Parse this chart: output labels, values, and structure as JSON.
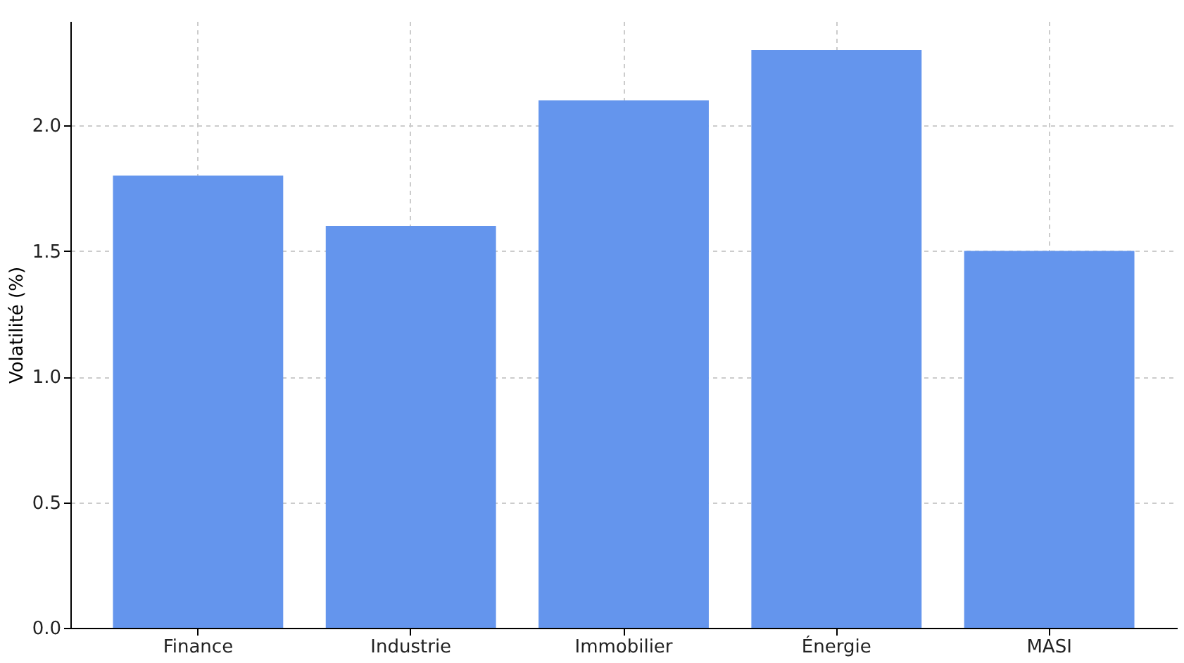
{
  "chart_data": {
    "type": "bar",
    "categories": [
      "Finance",
      "Industrie",
      "Immobilier",
      "Énergie",
      "MASI"
    ],
    "values": [
      1.8,
      1.6,
      2.1,
      2.3,
      1.5
    ],
    "color": "#6495ed",
    "ylabel": "Volatilité (%)",
    "ylim": [
      0,
      2.415
    ],
    "yticks": [
      {
        "value": 0,
        "label": "0.0"
      },
      {
        "value": 0.5,
        "label": "0.5"
      },
      {
        "value": 1,
        "label": "1.0"
      },
      {
        "value": 1.5,
        "label": "1.5"
      },
      {
        "value": 2,
        "label": "2.0"
      }
    ],
    "grid": true
  }
}
